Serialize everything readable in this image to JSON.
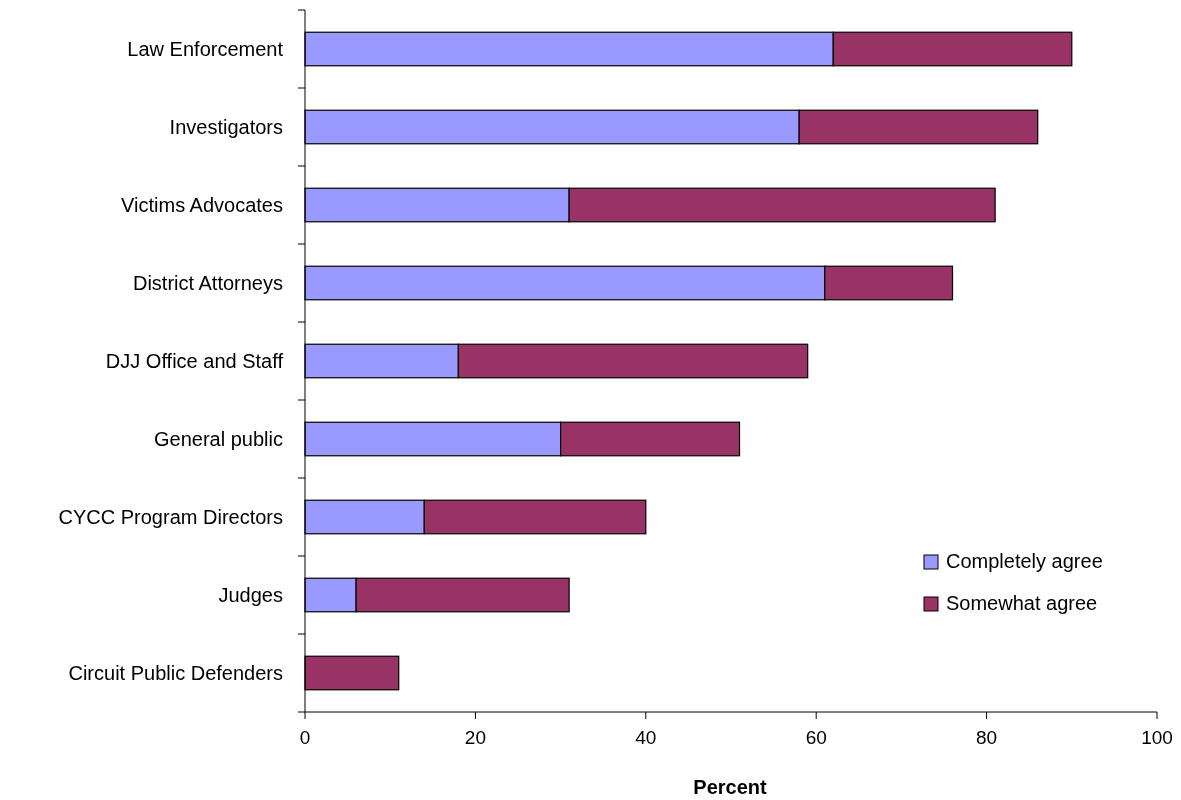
{
  "chart_data": {
    "type": "bar",
    "orientation": "horizontal",
    "stacked": true,
    "xlabel": "Percent",
    "categories": [
      "Law Enforcement",
      "Investigators",
      "Victims Advocates",
      "District Attorneys",
      "DJJ Office and Staff",
      "General public",
      "CYCC Program Directors",
      "Judges",
      "Circuit Public Defenders"
    ],
    "series": [
      {
        "name": "Completely agree",
        "color": "#9999ff",
        "values": [
          62,
          58,
          31,
          61,
          18,
          30,
          14,
          6,
          0
        ]
      },
      {
        "name": "Somewhat agree",
        "color": "#993366",
        "values": [
          28,
          28,
          50,
          15,
          41,
          21,
          26,
          25,
          11
        ]
      }
    ],
    "xlim": [
      0,
      100
    ],
    "xticks": [
      0,
      20,
      40,
      60,
      80,
      100
    ],
    "grid": false,
    "legend": "bottom right"
  }
}
